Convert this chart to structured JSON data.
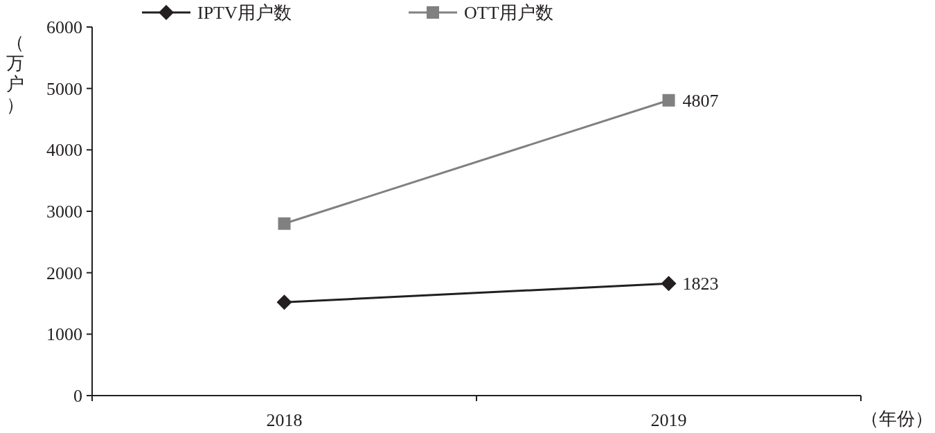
{
  "chart_data": {
    "type": "line",
    "ylabel": "（万户）",
    "xlabel": "（年份）",
    "categories": [
      "2018",
      "2019"
    ],
    "ylim": [
      0,
      6000
    ],
    "yticks": [
      0,
      1000,
      2000,
      3000,
      4000,
      5000,
      6000
    ],
    "legend": "top",
    "series": [
      {
        "name": "IPTV用户数",
        "color": "#231f20",
        "marker": "diamond",
        "values": [
          1520,
          1823
        ],
        "value_labels": [
          null,
          "1823"
        ]
      },
      {
        "name": "OTT用户数",
        "color": "#808080",
        "marker": "square",
        "values": [
          2800,
          4807
        ],
        "value_labels": [
          null,
          "4807"
        ]
      }
    ]
  }
}
